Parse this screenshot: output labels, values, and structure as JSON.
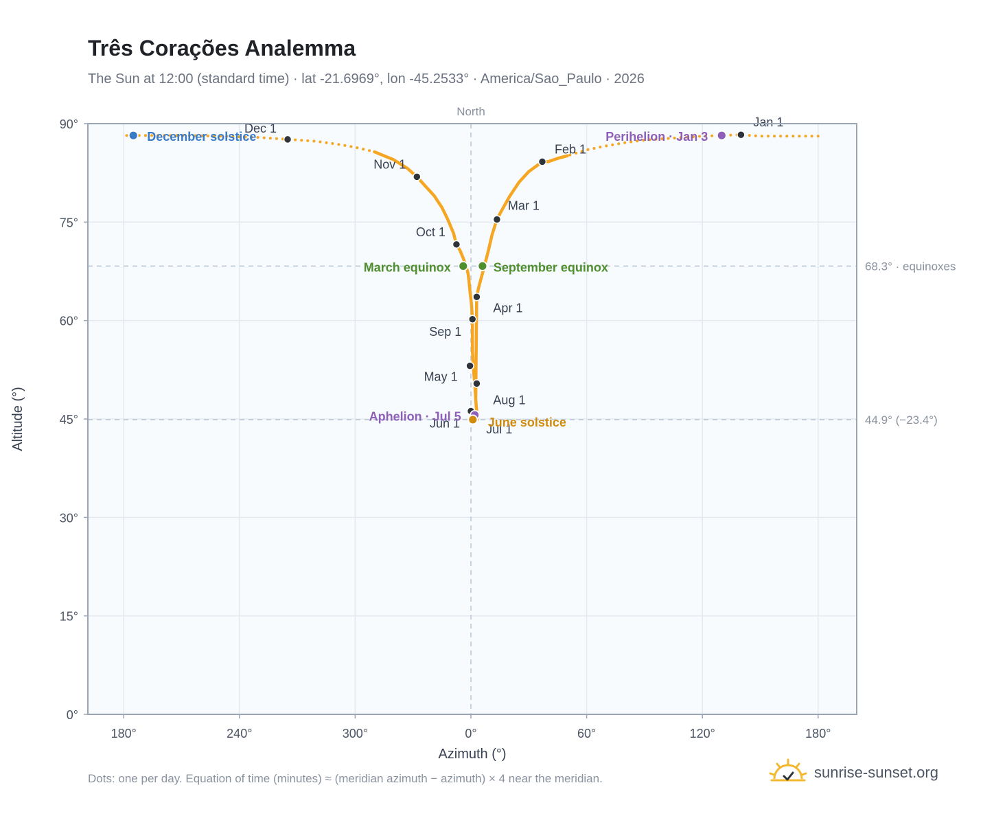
{
  "header": {
    "title": "Três Corações Analemma",
    "subtitle": "The Sun at 12:00 (standard time) · lat -21.6969°, lon -45.2533° · America/Sao_Paulo · 2026"
  },
  "footer": {
    "note": "Dots: one per day. Equation of time (minutes) ≈ (meridian azimuth − azimuth) × 4 near the meridian.",
    "brand": "sunrise-sunset.org"
  },
  "colors": {
    "curve": "#f5a623",
    "month_dot": "#2f343a",
    "december_solstice": "#3a7bc8",
    "june_solstice": "#d08c0e",
    "equinox": "#4f8f2e",
    "apsis": "#8e5fb8",
    "reference_line": "#b8c6d4",
    "plot_bg": "#f8fbfe",
    "grid": "#e4e9ef"
  },
  "chart_data": {
    "type": "scatter",
    "title": "Três Corações Analemma",
    "xlabel": "Azimuth (°)",
    "ylabel": "Altitude (°)",
    "x_ticks": [
      "180°",
      "240°",
      "300°",
      "0°",
      "60°",
      "120°",
      "180°"
    ],
    "y_ticks": [
      "0°",
      "15°",
      "30°",
      "45°",
      "60°",
      "75°",
      "90°"
    ],
    "ylim": [
      0,
      90
    ],
    "grid": true,
    "meridian_label": "North",
    "reference_lines": [
      {
        "altitude": 68.3,
        "label": "68.3° · equinoxes"
      },
      {
        "altitude": 44.9,
        "label": "44.9° (−23.4°)"
      }
    ],
    "months": [
      {
        "label": "Jan 1",
        "azimuth": 140.0,
        "altitude": 88.3
      },
      {
        "label": "Feb 1",
        "azimuth": 37.0,
        "altitude": 84.2
      },
      {
        "label": "Mar 1",
        "azimuth": 13.5,
        "altitude": 75.4
      },
      {
        "label": "Apr 1",
        "azimuth": 3.0,
        "altitude": 63.6
      },
      {
        "label": "May 1",
        "azimuth": -0.5,
        "altitude": 53.1
      },
      {
        "label": "Jun 1",
        "azimuth": 0.0,
        "altitude": 46.2
      },
      {
        "label": "Jul 1",
        "azimuth": 0.8,
        "altitude": 44.9
      },
      {
        "label": "Aug 1",
        "azimuth": 3.0,
        "altitude": 50.4
      },
      {
        "label": "Sep 1",
        "azimuth": 0.8,
        "altitude": 60.2
      },
      {
        "label": "Oct 1",
        "azimuth": -7.5,
        "altitude": 71.6
      },
      {
        "label": "Nov 1",
        "azimuth": -28.0,
        "altitude": 81.9
      },
      {
        "label": "Dec 1",
        "azimuth": -95.0,
        "altitude": 87.6
      }
    ],
    "events": [
      {
        "label": "December solstice",
        "azimuth": -175.0,
        "altitude": 88.2,
        "color_key": "december_solstice"
      },
      {
        "label": "Perihelion · Jan 3",
        "azimuth": 130.0,
        "altitude": 88.2,
        "color_key": "apsis"
      },
      {
        "label": "March equinox",
        "azimuth": -4.0,
        "altitude": 68.3,
        "color_key": "equinox"
      },
      {
        "label": "September equinox",
        "azimuth": 6.0,
        "altitude": 68.3,
        "color_key": "equinox"
      },
      {
        "label": "Aphelion · Jul 5",
        "azimuth": 2.0,
        "altitude": 45.6,
        "color_key": "apsis"
      },
      {
        "label": "June solstice",
        "azimuth": 1.0,
        "altitude": 44.9,
        "color_key": "june_solstice"
      }
    ],
    "path_x": [
      180,
      170,
      160,
      150,
      140,
      130,
      120,
      110,
      100,
      90,
      80,
      70,
      60,
      50,
      45,
      40,
      37,
      30,
      25,
      20,
      16,
      13.5,
      11,
      9,
      7,
      5,
      4,
      3,
      2.5,
      3,
      3.3,
      3.2,
      3,
      2.5,
      2,
      1.5,
      1.2,
      0.8,
      0.8,
      0.8,
      0.3,
      -0.5,
      -1,
      -1.5,
      -2.5,
      -4,
      -5.5,
      -7.5,
      -9,
      -12,
      -15,
      -19,
      -24,
      -28,
      -33,
      -40,
      -50,
      -60,
      -70,
      -80,
      -95,
      -110,
      -130,
      -150,
      -165,
      -180
    ],
    "path_y": [
      88.1,
      88.1,
      88.1,
      88.1,
      88.3,
      88.2,
      88.1,
      87.9,
      87.7,
      87.5,
      87.1,
      86.6,
      86.0,
      85.1,
      84.7,
      84.2,
      84.2,
      82.7,
      81.1,
      78.9,
      76.8,
      75.4,
      73.1,
      70.6,
      68.3,
      66.1,
      65.0,
      63.6,
      48.0,
      46.2,
      45.4,
      44.9,
      46.0,
      48.0,
      50.4,
      52.0,
      53.1,
      55.4,
      57.5,
      60.2,
      62.5,
      64.5,
      66.0,
      67.2,
      68.3,
      69.5,
      70.6,
      71.6,
      73.3,
      75.4,
      77.2,
      79.0,
      80.6,
      81.9,
      83.2,
      84.5,
      85.7,
      86.4,
      86.9,
      87.3,
      87.6,
      87.9,
      88.1,
      88.2,
      88.2,
      88.2
    ]
  }
}
